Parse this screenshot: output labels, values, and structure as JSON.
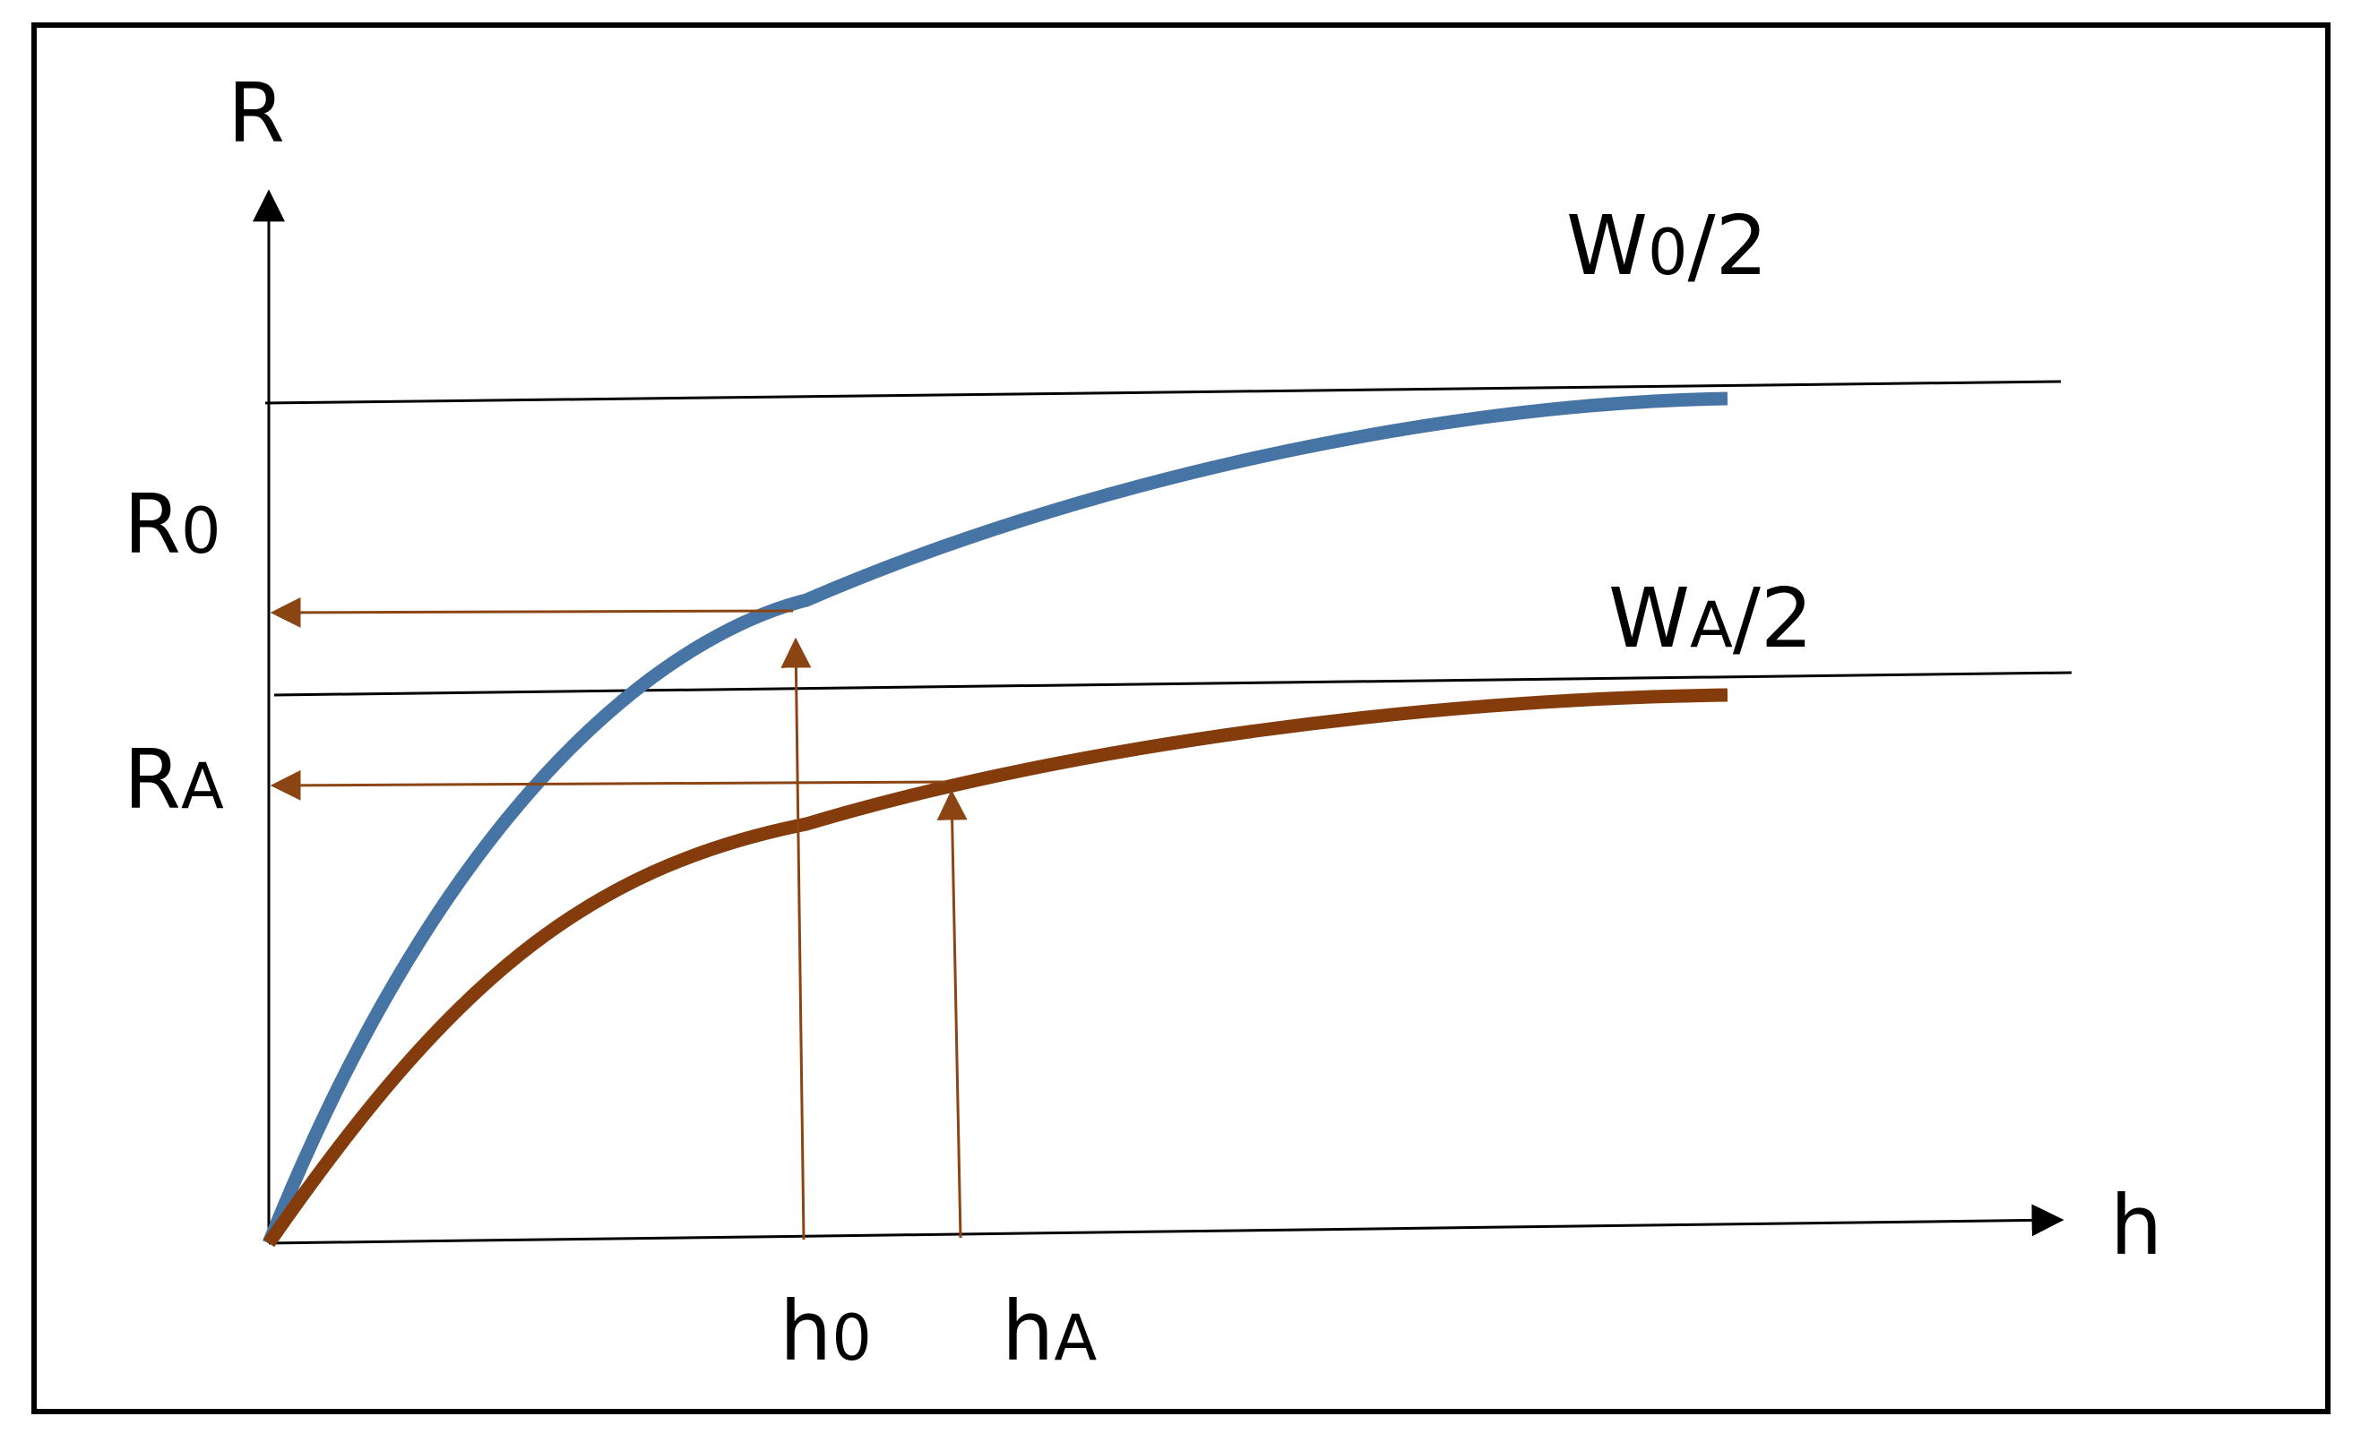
{
  "axes": {
    "y_label": "R",
    "x_label": "h"
  },
  "asymptotes": {
    "upper": {
      "main": "W",
      "sub": "0",
      "suffix": "/2"
    },
    "lower": {
      "main": "W",
      "sub": "A",
      "suffix": "/2"
    }
  },
  "r_labels": {
    "r0": {
      "main": "R",
      "sub": "0"
    },
    "ra": {
      "main": "R",
      "sub": "A"
    }
  },
  "h_labels": {
    "h0": {
      "main": "h",
      "sub": "0"
    },
    "ha": {
      "main": "h",
      "sub": "A"
    }
  },
  "colors": {
    "curve_0": "#4674a4",
    "curve_A": "#843c0c",
    "arrows": "#8b4513",
    "lines": "#000000"
  }
}
